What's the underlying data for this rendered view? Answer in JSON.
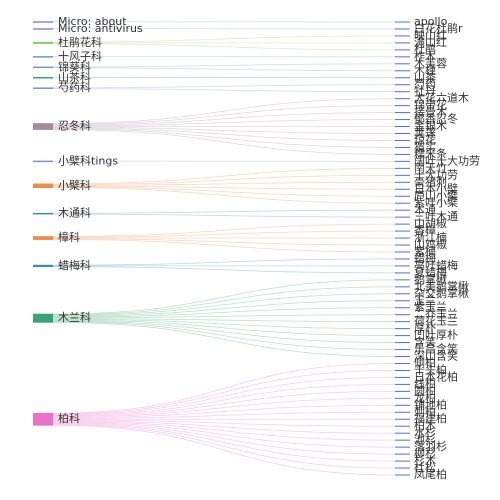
{
  "chart_data": {
    "type": "sankey",
    "nodes": [
      {
        "name": "Micro: about",
        "color": "#7b8fd6"
      },
      {
        "name": "Micro: antivirus",
        "color": "#7b8fd6"
      },
      {
        "name": "杜鹃花科",
        "color": "#91cc75"
      },
      {
        "name": "十风子科",
        "color": "#7b8fd6"
      },
      {
        "name": "锦葵科",
        "color": "#7b8fd6"
      },
      {
        "name": "山茶科",
        "color": "#3ba272"
      },
      {
        "name": "芍药科",
        "color": "#7b8fd6"
      },
      {
        "name": "忍冬科",
        "color": "#a78b9c"
      },
      {
        "name": "小檗科tings",
        "color": "#7b8fd6"
      },
      {
        "name": "小檗科",
        "color": "#ee8a4a"
      },
      {
        "name": "木通科",
        "color": "#3b8f9a"
      },
      {
        "name": "樟科",
        "color": "#ee8a4a"
      },
      {
        "name": "蜡梅科",
        "color": "#3b8f9a"
      },
      {
        "name": "木兰科",
        "color": "#3ba272"
      },
      {
        "name": "柏科",
        "color": "#e872c8"
      }
    ],
    "target_color": "#5470c6",
    "links": [
      {
        "source": "Micro: about",
        "target": "apollo",
        "value": 1
      },
      {
        "source": "Micro: antivirus",
        "target": "白花杜鹃r",
        "value": 1
      },
      {
        "source": "杜鹃花科",
        "target": "映山红",
        "value": 1
      },
      {
        "source": "杜鹃花科",
        "target": "满山红",
        "value": 1
      },
      {
        "source": "杜鹃花科",
        "target": "杜鹃",
        "value": 1
      },
      {
        "source": "十风子科",
        "target": "柞木",
        "value": 1
      },
      {
        "source": "锦葵科",
        "target": "木芙蓉",
        "value": 1
      },
      {
        "source": "锦葵科",
        "target": "木槿",
        "value": 1
      },
      {
        "source": "山茶科",
        "target": "山茶",
        "value": 1
      },
      {
        "source": "芍药科",
        "target": "芍药",
        "value": 1
      },
      {
        "source": "芍药科",
        "target": "牡丹",
        "value": 1
      },
      {
        "source": "忍冬科",
        "target": "大花六道木",
        "value": 1
      },
      {
        "source": "忍冬科",
        "target": "锦带花",
        "value": 1
      },
      {
        "source": "忍冬科",
        "target": "接骨木",
        "value": 1
      },
      {
        "source": "忍冬科",
        "target": "郁香忍冬",
        "value": 1
      },
      {
        "source": "忍冬科",
        "target": "金银木",
        "value": 1
      },
      {
        "source": "忍冬科",
        "target": "荚蒾",
        "value": 1
      },
      {
        "source": "忍冬科",
        "target": "琼花",
        "value": 1
      },
      {
        "source": "忍冬科",
        "target": "猬实",
        "value": 1
      },
      {
        "source": "忍冬科",
        "target": "糯米条",
        "value": 1
      },
      {
        "source": "小檗科tings",
        "target": "阔叶十大功劳",
        "value": 1
      },
      {
        "source": "小檗科",
        "target": "南天竹",
        "value": 1
      },
      {
        "source": "小檗科",
        "target": "十大功劳",
        "value": 1
      },
      {
        "source": "小檗科",
        "target": "豪猪刺",
        "value": 1
      },
      {
        "source": "小檗科",
        "target": "日本小檗",
        "value": 1
      },
      {
        "source": "小檗科",
        "target": "庐山小檗",
        "value": 1
      },
      {
        "source": "小檗科",
        "target": "紫叶小檗",
        "value": 1
      },
      {
        "source": "木通科",
        "target": "木通",
        "value": 1
      },
      {
        "source": "木通科",
        "target": "三叶木通",
        "value": 1
      },
      {
        "source": "樟科",
        "target": "山胡椒",
        "value": 1
      },
      {
        "source": "樟科",
        "target": "香樟",
        "value": 1
      },
      {
        "source": "樟科",
        "target": "浙江楠",
        "value": 1
      },
      {
        "source": "樟科",
        "target": "山鸡椒",
        "value": 1
      },
      {
        "source": "樟科",
        "target": "紫楠",
        "value": 1
      },
      {
        "source": "蜡梅科",
        "target": "蜡梅",
        "value": 1
      },
      {
        "source": "蜡梅科",
        "target": "亮叶蜡梅",
        "value": 1
      },
      {
        "source": "蜡梅科",
        "target": "夏蜡梅",
        "value": 1
      },
      {
        "source": "木兰科",
        "target": "鹅掌楸",
        "value": 1
      },
      {
        "source": "木兰科",
        "target": "北美鹅掌楸",
        "value": 1
      },
      {
        "source": "木兰科",
        "target": "杂交鹅掌楸",
        "value": 1
      },
      {
        "source": "木兰科",
        "target": "玉兰",
        "value": 1
      },
      {
        "source": "木兰科",
        "target": "紫玉兰",
        "value": 1
      },
      {
        "source": "木兰科",
        "target": "二乔玉兰",
        "value": 1
      },
      {
        "source": "木兰科",
        "target": "荷花玉兰",
        "value": 1
      },
      {
        "source": "木兰科",
        "target": "厚朴",
        "value": 1
      },
      {
        "source": "木兰科",
        "target": "凹叶厚朴",
        "value": 1
      },
      {
        "source": "木兰科",
        "target": "含笑",
        "value": 1
      },
      {
        "source": "木兰科",
        "target": "乐昌含笑",
        "value": 1
      },
      {
        "source": "木兰科",
        "target": "深山含笑",
        "value": 1
      },
      {
        "source": "柏科",
        "target": "侧柏",
        "value": 1
      },
      {
        "source": "柏科",
        "target": "千头柏",
        "value": 1
      },
      {
        "source": "柏科",
        "target": "日本花柏",
        "value": 1
      },
      {
        "source": "柏科",
        "target": "线柏",
        "value": 1
      },
      {
        "source": "柏科",
        "target": "圆柏",
        "value": 1
      },
      {
        "source": "柏科",
        "target": "龙柏",
        "value": 1
      },
      {
        "source": "柏科",
        "target": "铺地柏",
        "value": 1
      },
      {
        "source": "柏科",
        "target": "刺柏",
        "value": 1
      },
      {
        "source": "柏科",
        "target": "福建柏",
        "value": 1
      },
      {
        "source": "柏科",
        "target": "柏木",
        "value": 1
      },
      {
        "source": "柏科",
        "target": "水杉",
        "value": 1
      },
      {
        "source": "柏科",
        "target": "池杉",
        "value": 1
      },
      {
        "source": "柏科",
        "target": "落羽杉",
        "value": 1
      },
      {
        "source": "柏科",
        "target": "柳杉",
        "value": 1
      },
      {
        "source": "柏科",
        "target": "杉木",
        "value": 1
      },
      {
        "source": "柏科",
        "target": "杜松",
        "value": 1
      },
      {
        "source": "柏科",
        "target": "凤尾柏",
        "value": 1
      }
    ]
  }
}
